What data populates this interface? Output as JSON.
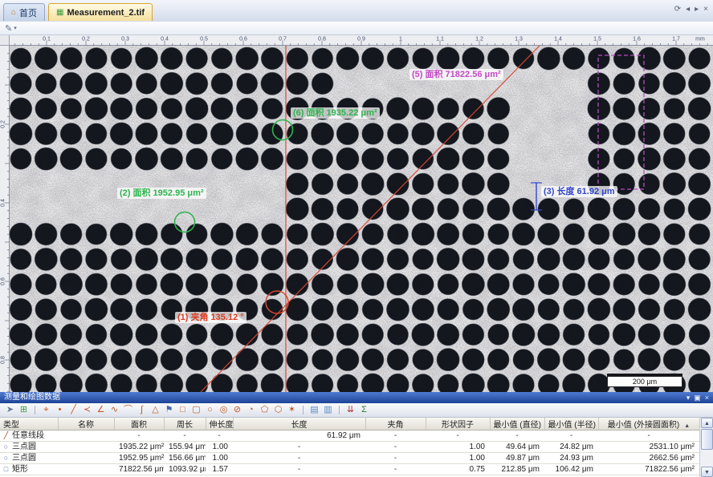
{
  "tab_bar": {
    "tabs": [
      {
        "id": "home",
        "label": "首页",
        "icon_glyph": "⌂"
      },
      {
        "id": "document",
        "label": "Measurement_2.tif",
        "icon_glyph": "▦",
        "active": true
      }
    ],
    "window_controls": [
      {
        "name": "refresh",
        "glyph": "⟳"
      },
      {
        "name": "prev",
        "glyph": "◂"
      },
      {
        "name": "next",
        "glyph": "▸"
      },
      {
        "name": "close",
        "glyph": "×"
      }
    ]
  },
  "subtoolbar": {
    "tool_glyph": "✎",
    "dropdown_glyph": "▾"
  },
  "rulers": {
    "h_labels": [
      "0.1",
      "0.2",
      "0.3",
      "0.4",
      "0.5",
      "0.6",
      "0.7",
      "0.8",
      "0.9",
      "1",
      "1.1",
      "1.2",
      "1.3",
      "1.4",
      "1.5",
      "1.6",
      "1.7"
    ],
    "v_labels": [
      "0.2",
      "0.4",
      "0.6",
      "0.8"
    ],
    "unit": "mm"
  },
  "viewer": {
    "scale_bar": "200 μm",
    "annotations": [
      {
        "id": 1,
        "kind": "angle",
        "text": "(1)  夹角 135.12 °",
        "color": "#e23b20"
      },
      {
        "id": 2,
        "kind": "area",
        "text": "(2)  面积 1952.95 μm²",
        "color": "#2eb44e"
      },
      {
        "id": 3,
        "kind": "length",
        "text": "(3)  长度 61.92 μm",
        "color": "#3448cc"
      },
      {
        "id": 5,
        "kind": "area",
        "text": "(5)  面积 71822.56 μm²",
        "color": "#c44ac4"
      },
      {
        "id": 6,
        "kind": "area",
        "text": "(6)  面积 1935.22 μm²",
        "color": "#2eb44e"
      }
    ]
  },
  "panel": {
    "title": "测量和绘图数据",
    "title_controls": [
      {
        "name": "menu",
        "glyph": "▾"
      },
      {
        "name": "dock",
        "glyph": "▣"
      },
      {
        "name": "close",
        "glyph": "×"
      }
    ],
    "toolbar_icons": [
      {
        "name": "pointer",
        "glyph": "➤",
        "color": "#6b7d99"
      },
      {
        "name": "copy-results",
        "glyph": "⊞",
        "color": "#3f9d44"
      },
      {
        "sep": true
      },
      {
        "name": "count-tool",
        "glyph": "⌖",
        "color": "#bf5a26"
      },
      {
        "name": "point-tool",
        "glyph": "•",
        "color": "#bf5a26"
      },
      {
        "name": "line-tool",
        "glyph": "╱",
        "color": "#bf5a26"
      },
      {
        "name": "polyline-tool",
        "glyph": "≺",
        "color": "#bf5a26"
      },
      {
        "name": "angle-tool",
        "glyph": "∠",
        "color": "#bf5a26"
      },
      {
        "name": "curve-tool",
        "glyph": "∿",
        "color": "#bf5a26"
      },
      {
        "name": "arc-tool",
        "glyph": "⌒",
        "color": "#bf5a26"
      },
      {
        "name": "spline-tool",
        "glyph": "ʃ",
        "color": "#bf5a26"
      },
      {
        "name": "triangle-tool",
        "glyph": "△",
        "color": "#bf5a26"
      },
      {
        "name": "marker-tool",
        "glyph": "⚑",
        "color": "#4a66b4"
      },
      {
        "name": "rect-tool",
        "glyph": "□",
        "color": "#bf5a26"
      },
      {
        "name": "rounded-rect-tool",
        "glyph": "▢",
        "color": "#bf5a26"
      },
      {
        "name": "circle-tool",
        "glyph": "○",
        "color": "#bf5a26"
      },
      {
        "name": "concentric-circle-tool",
        "glyph": "◎",
        "color": "#bf5a26"
      },
      {
        "name": "diameter-tool",
        "glyph": "⊘",
        "color": "#bf5a26"
      },
      {
        "name": "sector-tool",
        "glyph": "◔",
        "color": "#bf5a26"
      },
      {
        "name": "polygon-tool",
        "glyph": "⬠",
        "color": "#bf5a26"
      },
      {
        "name": "hexagon-tool",
        "glyph": "⬡",
        "color": "#bf5a26"
      },
      {
        "name": "star-tool",
        "glyph": "✶",
        "color": "#bf5a26"
      },
      {
        "sep": true
      },
      {
        "name": "sheet",
        "glyph": "▤",
        "color": "#5a84c4"
      },
      {
        "name": "report",
        "glyph": "▥",
        "color": "#5a84c4"
      },
      {
        "sep": true
      },
      {
        "name": "export",
        "glyph": "⇊",
        "color": "#b03838"
      },
      {
        "name": "statistics",
        "glyph": "Σ",
        "color": "#2f7d32"
      }
    ],
    "table": {
      "columns": [
        "类型",
        "名称",
        "面积",
        "周长",
        "伸长度",
        "长度",
        "夹角",
        "形状因子",
        "最小值 (直径)",
        "最小值 (半径)",
        "最小值 (外接圆面积)"
      ],
      "sort": {
        "column_index": 10,
        "glyph": "▲"
      },
      "rows": [
        {
          "type": "任意线段",
          "icon": "line",
          "cells": [
            "",
            "-",
            "-",
            "-",
            "61.92 μm",
            "-",
            "-",
            "-",
            "-",
            "-"
          ]
        },
        {
          "type": "三点圆",
          "icon": "circle",
          "cells": [
            "",
            "1935.22 μm²",
            "155.94 μm",
            "1.00",
            "-",
            "-",
            "1.00",
            "49.64 μm",
            "24.82 μm",
            "2531.10 μm²"
          ]
        },
        {
          "type": "三点圆",
          "icon": "circle",
          "cells": [
            "",
            "1952.95 μm²",
            "156.66 μm",
            "1.00",
            "-",
            "-",
            "1.00",
            "49.87 μm",
            "24.93 μm",
            "2662.56 μm²"
          ]
        },
        {
          "type": "矩形",
          "icon": "rect",
          "cells": [
            "",
            "71822.56 μm²",
            "1093.92 μm",
            "1.57",
            "-",
            "-",
            "0.75",
            "212.85 μm",
            "106.42 μm",
            "71822.56 μm²"
          ]
        }
      ]
    }
  }
}
